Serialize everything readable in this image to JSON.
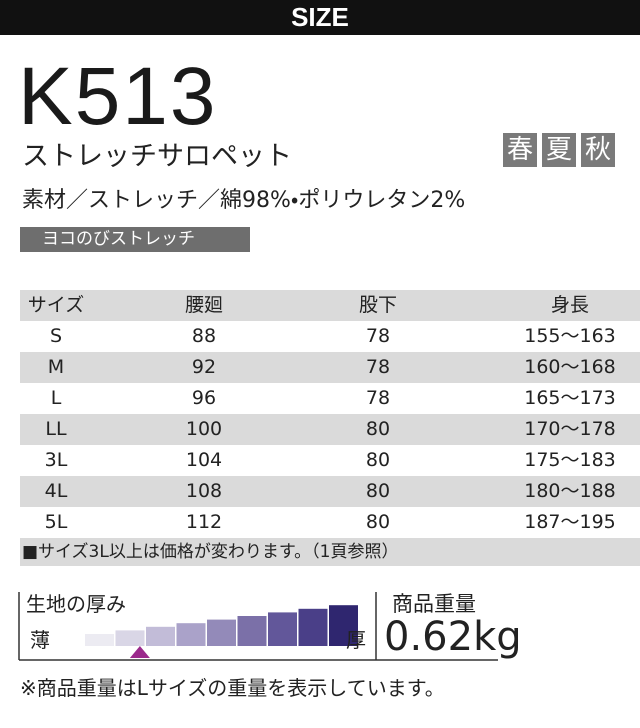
{
  "header": {
    "title": "SIZE"
  },
  "product": {
    "code": "K513",
    "name": "ストレッチサロペット",
    "seasons": [
      "春",
      "夏",
      "秋"
    ],
    "material": "素材／ストレッチ／綿98%・ポリウレタン2%",
    "tag": "ヨコのびストレッチ"
  },
  "table": {
    "columns": [
      "サイズ",
      "腰廻",
      "股下",
      "身長"
    ],
    "rows": [
      [
        "S",
        "88",
        "78",
        "155〜163"
      ],
      [
        "M",
        "92",
        "78",
        "160〜168"
      ],
      [
        "L",
        "96",
        "78",
        "165〜173"
      ],
      [
        "LL",
        "100",
        "80",
        "170〜178"
      ],
      [
        "3L",
        "104",
        "80",
        "175〜183"
      ],
      [
        "4L",
        "108",
        "80",
        "180〜188"
      ],
      [
        "5L",
        "112",
        "80",
        "187〜195"
      ]
    ],
    "note": "■サイズ3L以上は価格が変わります。（1頁参照）"
  },
  "thickness": {
    "label": "生地の厚み",
    "thin": "薄",
    "thick": "厚",
    "level": 2
  },
  "weight": {
    "label": "商品重量",
    "value": "0.62kg"
  },
  "footer": "※商品重量はLサイズの重量を表示しています。"
}
